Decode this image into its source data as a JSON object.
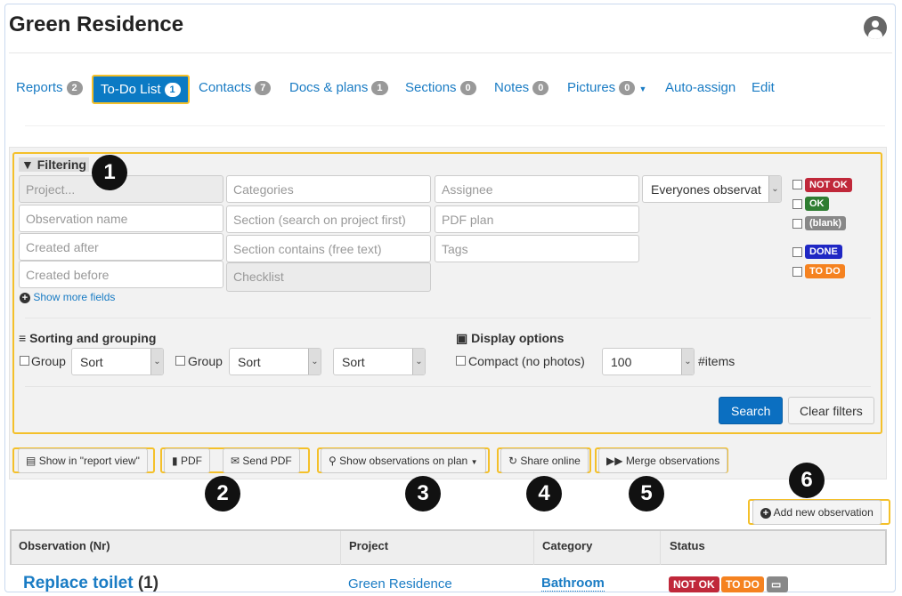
{
  "header": {
    "title": "Green Residence",
    "avatar_icon": "user-circle-icon"
  },
  "nav": [
    {
      "label": "Reports",
      "badge": "2"
    },
    {
      "label": "To-Do List",
      "badge": "1",
      "active": true
    },
    {
      "label": "Contacts",
      "badge": "7"
    },
    {
      "label": "Docs & plans",
      "badge": "1"
    },
    {
      "label": "Sections",
      "badge": "0"
    },
    {
      "label": "Notes",
      "badge": "0"
    },
    {
      "label": "Pictures",
      "badge": "0"
    },
    {
      "label": "Auto-assign"
    },
    {
      "label": "Edit"
    }
  ],
  "filtering": {
    "title": "Filtering",
    "fields": {
      "project": "Project...",
      "categories": "Categories",
      "assignee": "Assignee",
      "observation_name": "Observation name",
      "section": "Section (search on project first)",
      "pdf_plan": "PDF plan",
      "created_after": "Created after",
      "section_contains": "Section contains (free text)",
      "tags": "Tags",
      "created_before": "Created before",
      "checklist": "Checklist"
    },
    "owner_select": "Everyones observat",
    "show_more": "Show more fields",
    "status_labels": [
      {
        "text": "NOT OK",
        "color": "#c0283a"
      },
      {
        "text": "OK",
        "color": "#2f7d32"
      },
      {
        "text": "(blank)",
        "color": "#888888"
      },
      {
        "text": "DONE",
        "color": "#1f27c4"
      },
      {
        "text": "TO DO",
        "color": "#f58220"
      }
    ]
  },
  "sorting": {
    "title": "Sorting and grouping",
    "group1": "Group",
    "sort1": "Sort",
    "group2": "Group",
    "sort2": "Sort",
    "sort3": "Sort"
  },
  "display": {
    "title": "Display options",
    "compact": "Compact (no photos)",
    "items_value": "100",
    "items_label": "#items"
  },
  "actions": {
    "search": "Search",
    "clear": "Clear filters",
    "report_view": "Show in \"report view\"",
    "pdf": "PDF",
    "send_pdf": "Send PDF",
    "show_on_plan": "Show observations on plan",
    "share": "Share online",
    "merge": "Merge observations",
    "add": "Add new observation"
  },
  "callouts": [
    "1",
    "2",
    "3",
    "4",
    "5",
    "6"
  ],
  "table": {
    "columns": [
      "Observation (Nr)",
      "Project",
      "Category",
      "Status"
    ],
    "rows": [
      {
        "name": "Replace toilet",
        "nr": "(1)",
        "project": "Green Residence",
        "category": "Bathroom",
        "status": [
          "NOT OK",
          "TO DO"
        ]
      }
    ]
  },
  "colors": {
    "accent": "#0b7ac4",
    "highlight": "#f4c02a"
  }
}
